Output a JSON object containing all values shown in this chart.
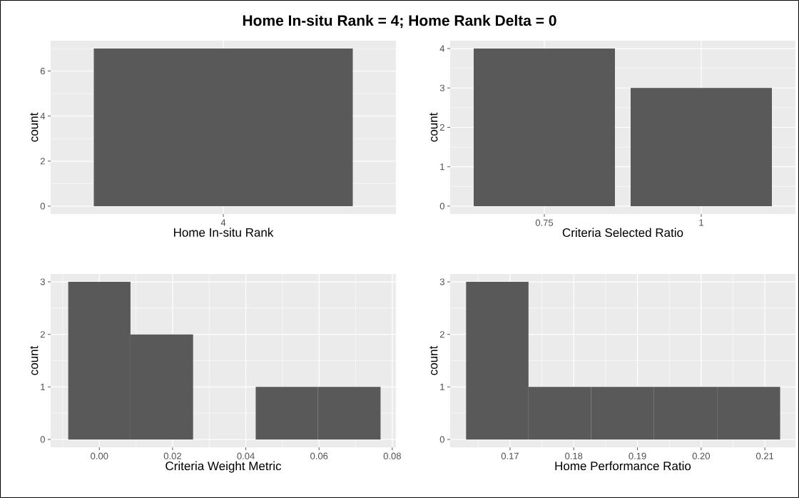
{
  "chart_data": [
    {
      "type": "bar",
      "title": "Home In-situ Rank = 4; Home Rank Delta = 0",
      "categories": [
        "4"
      ],
      "values": [
        7
      ],
      "color": "#595959",
      "xlabel": "Home In-situ Rank",
      "ylabel": "count",
      "ylim": [
        -0.35,
        7.35
      ],
      "yticks": [
        0,
        2,
        4,
        6
      ],
      "grid": true
    },
    {
      "type": "bar",
      "categories": [
        "0.75",
        "1"
      ],
      "values": [
        4,
        3
      ],
      "color": "#595959",
      "xlabel": "Criteria Selected Ratio",
      "ylabel": "count",
      "ylim": [
        -0.2,
        4.2
      ],
      "yticks": [
        0,
        1,
        2,
        3,
        4
      ],
      "grid": true
    },
    {
      "type": "histogram",
      "bins": [
        -0.0085,
        0.0085,
        0.0256,
        0.0427,
        0.0597,
        0.0768
      ],
      "values": [
        3,
        2,
        0,
        1,
        1
      ],
      "color": "#595959",
      "xlabel": "Criteria Weight Metric",
      "ylabel": "count",
      "xlim": [
        -0.0133,
        0.081
      ],
      "ylim": [
        -0.15,
        3.15
      ],
      "xticks": [
        {
          "value": 0,
          "label": "0.00"
        },
        {
          "value": 0.02,
          "label": "0.02"
        },
        {
          "value": 0.04,
          "label": "0.04"
        },
        {
          "value": 0.06,
          "label": "0.06"
        },
        {
          "value": 0.08,
          "label": "0.08"
        }
      ],
      "yticks": [
        0,
        1,
        2,
        3
      ],
      "grid": true
    },
    {
      "type": "histogram",
      "bins": [
        0.1631,
        0.1729,
        0.1827,
        0.1926,
        0.2025,
        0.2124
      ],
      "values": [
        3,
        1,
        1,
        1,
        1
      ],
      "color": "#595959",
      "xlabel": "Home Performance Ratio",
      "ylabel": "count",
      "xlim": [
        0.1606,
        0.2148
      ],
      "ylim": [
        -0.15,
        3.15
      ],
      "xticks": [
        {
          "value": 0.17,
          "label": "0.17"
        },
        {
          "value": 0.18,
          "label": "0.18"
        },
        {
          "value": 0.19,
          "label": "0.19"
        },
        {
          "value": 0.2,
          "label": "0.20"
        },
        {
          "value": 0.21,
          "label": "0.21"
        }
      ],
      "yticks": [
        0,
        1,
        2,
        3
      ],
      "grid": true
    }
  ]
}
